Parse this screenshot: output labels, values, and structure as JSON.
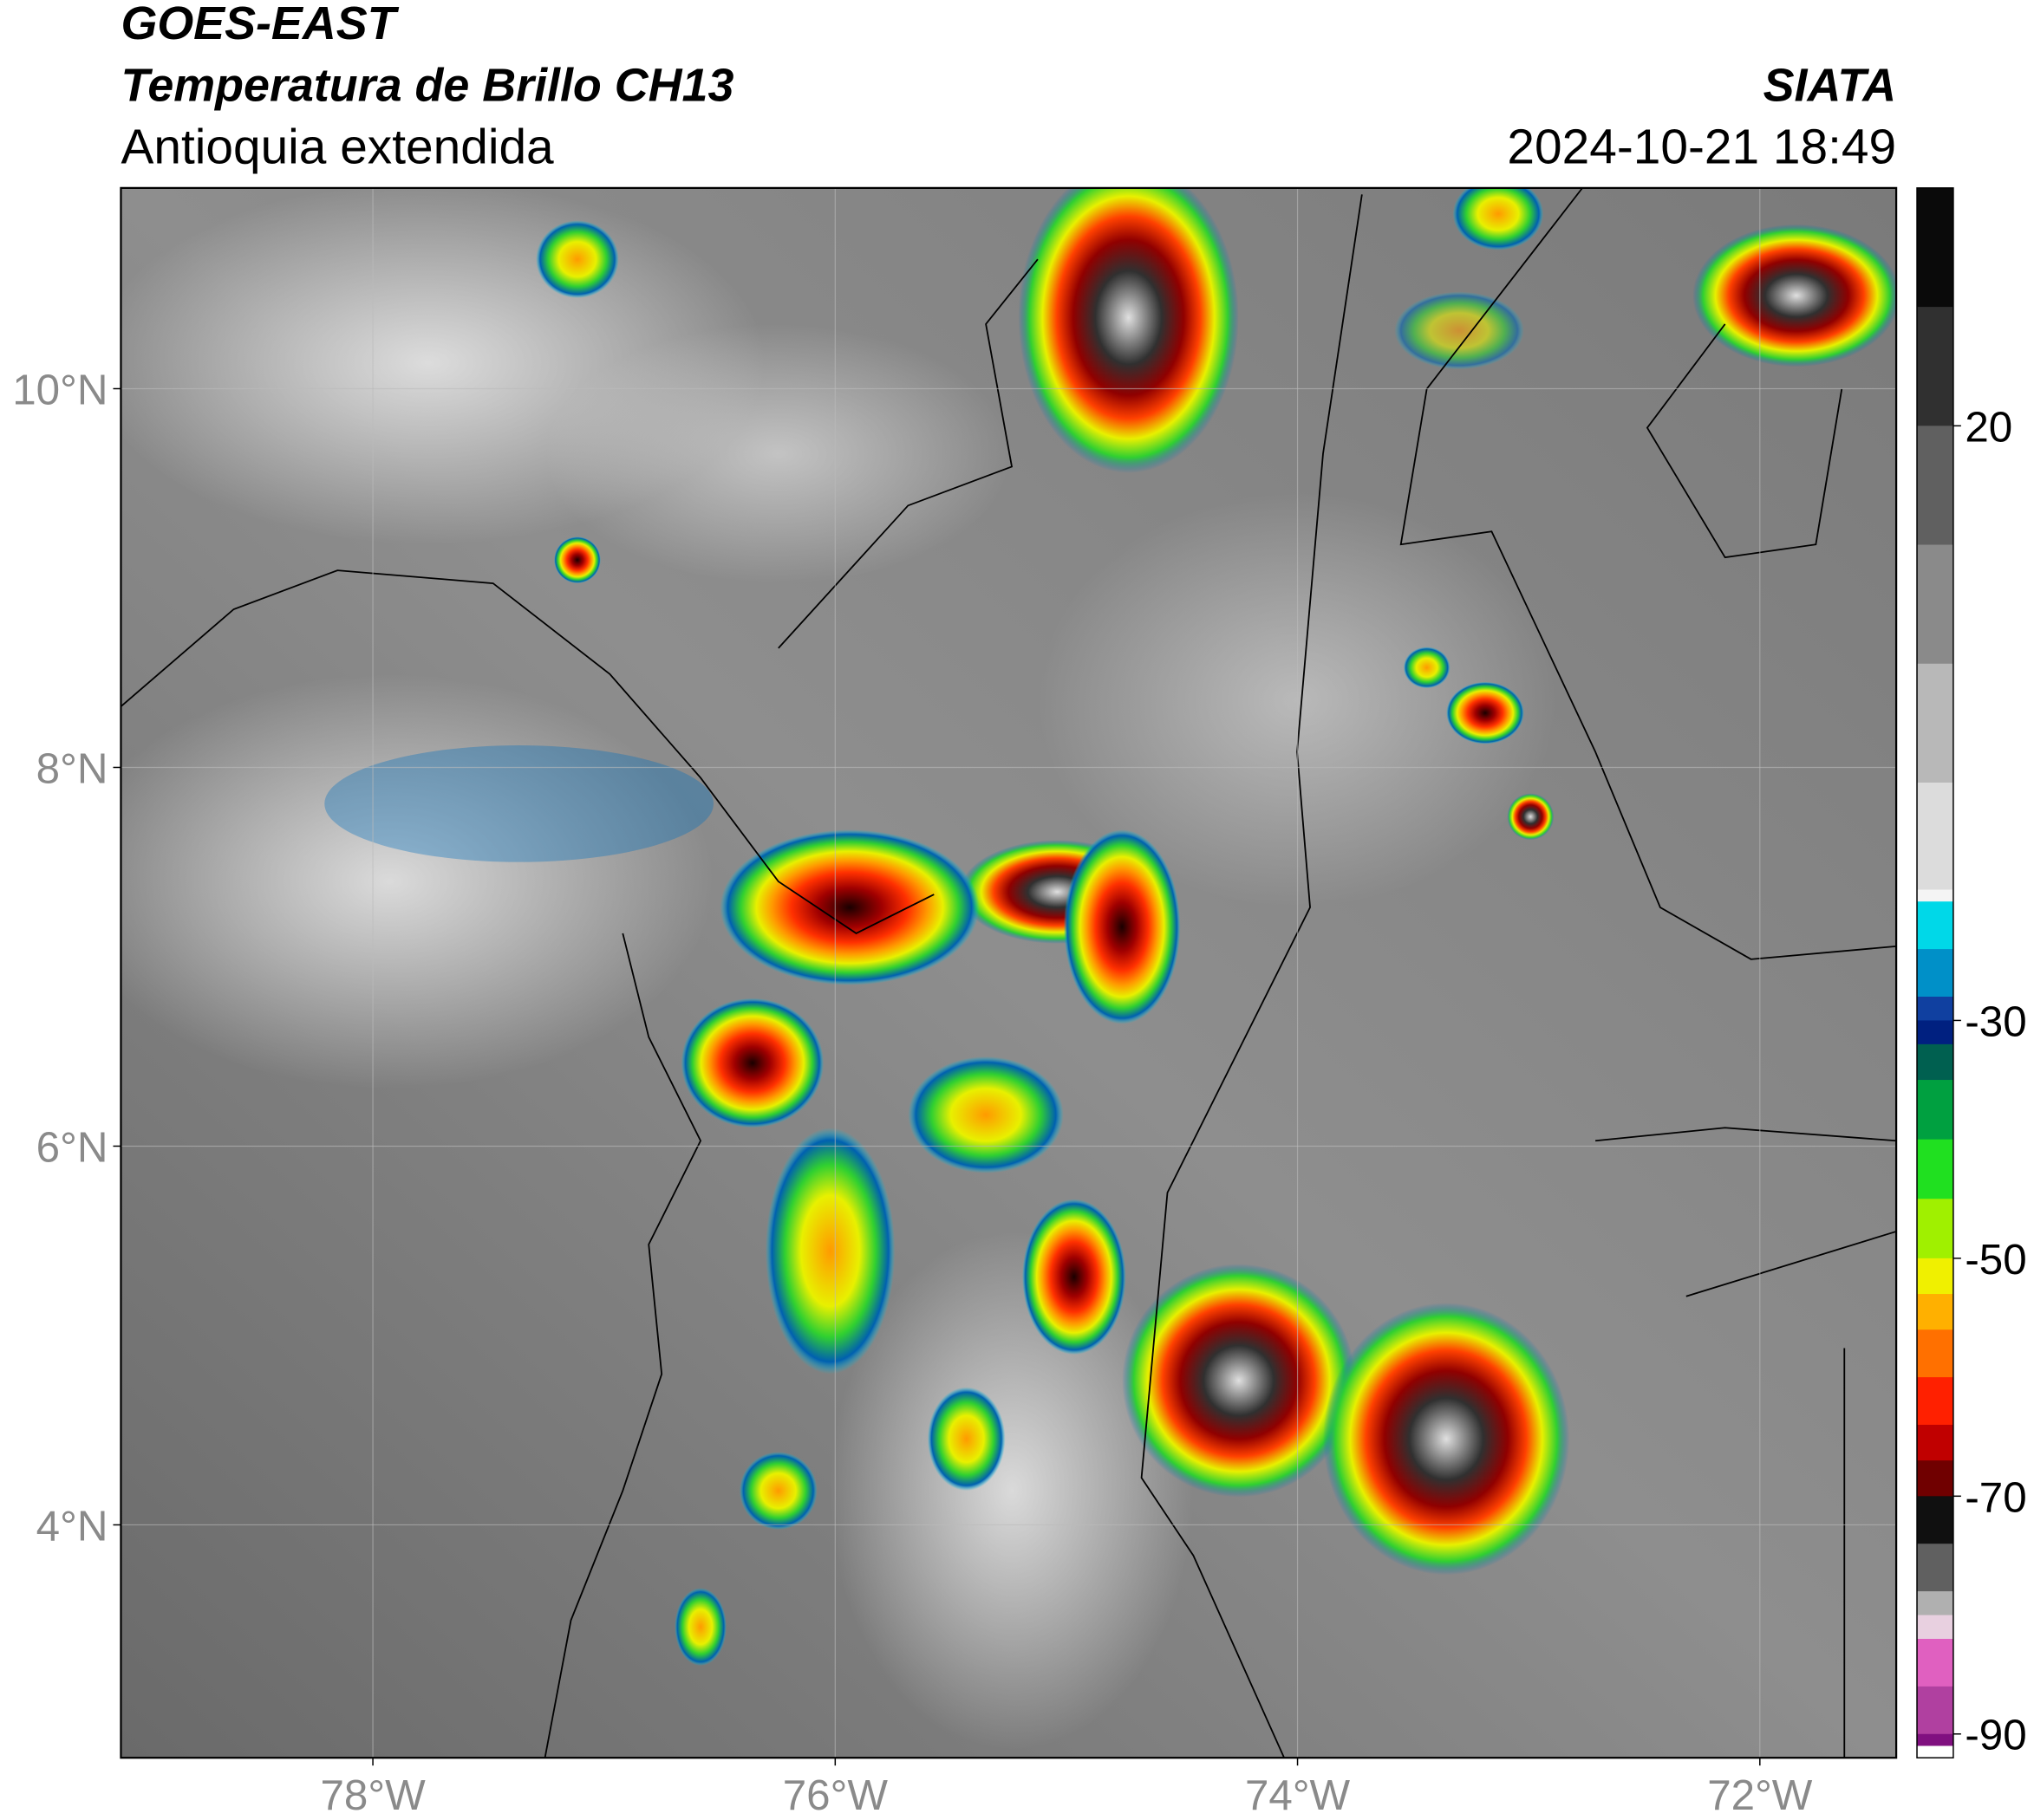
{
  "header": {
    "title": "GOES-EAST",
    "subtitle": "Temperatura de Brillo CH13",
    "region": "Antioquia extendida",
    "agency": "SIATA",
    "timestamp": "2024-10-21 18:49"
  },
  "map": {
    "xlim": [
      -79.09,
      -71.41
    ],
    "ylim": [
      2.77,
      11.06
    ],
    "xticks": [
      {
        "value": -78,
        "label": "78°W"
      },
      {
        "value": -76,
        "label": "76°W"
      },
      {
        "value": -74,
        "label": "74°W"
      },
      {
        "value": -72,
        "label": "72°W"
      }
    ],
    "yticks": [
      {
        "value": 10,
        "label": "10°N"
      },
      {
        "value": 8,
        "label": "8°N"
      },
      {
        "value": 6,
        "label": "6°N"
      },
      {
        "value": 4,
        "label": "4°N"
      }
    ],
    "grid": true
  },
  "colorbar": {
    "ylim": [
      -92,
      40
    ],
    "yticks": [
      20,
      -30,
      -50,
      -70,
      -90
    ],
    "stops": [
      {
        "value": 40,
        "color": "#0a0a0a"
      },
      {
        "value": 30,
        "color": "#303030"
      },
      {
        "value": 20,
        "color": "#606060"
      },
      {
        "value": 10,
        "color": "#8a8a8a"
      },
      {
        "value": 0,
        "color": "#b8b8b8"
      },
      {
        "value": -10,
        "color": "#dcdcdc"
      },
      {
        "value": -19,
        "color": "#f4f4f4"
      },
      {
        "value": -20,
        "color": "#00d8e8"
      },
      {
        "value": -24,
        "color": "#0090c8"
      },
      {
        "value": -28,
        "color": "#1040a0"
      },
      {
        "value": -30,
        "color": "#002080"
      },
      {
        "value": -32,
        "color": "#006050"
      },
      {
        "value": -35,
        "color": "#00a040"
      },
      {
        "value": -40,
        "color": "#20e020"
      },
      {
        "value": -45,
        "color": "#a0f000"
      },
      {
        "value": -50,
        "color": "#f0f000"
      },
      {
        "value": -53,
        "color": "#ffb000"
      },
      {
        "value": -56,
        "color": "#ff7000"
      },
      {
        "value": -60,
        "color": "#ff2000"
      },
      {
        "value": -64,
        "color": "#c00000"
      },
      {
        "value": -67,
        "color": "#700000"
      },
      {
        "value": -70,
        "color": "#101010"
      },
      {
        "value": -74,
        "color": "#606060"
      },
      {
        "value": -78,
        "color": "#b0b0b0"
      },
      {
        "value": -80,
        "color": "#e8d0e0"
      },
      {
        "value": -82,
        "color": "#e060c0"
      },
      {
        "value": -86,
        "color": "#b040a0"
      },
      {
        "value": -90,
        "color": "#801080"
      },
      {
        "value": -91,
        "color": "#ffffff"
      }
    ]
  }
}
